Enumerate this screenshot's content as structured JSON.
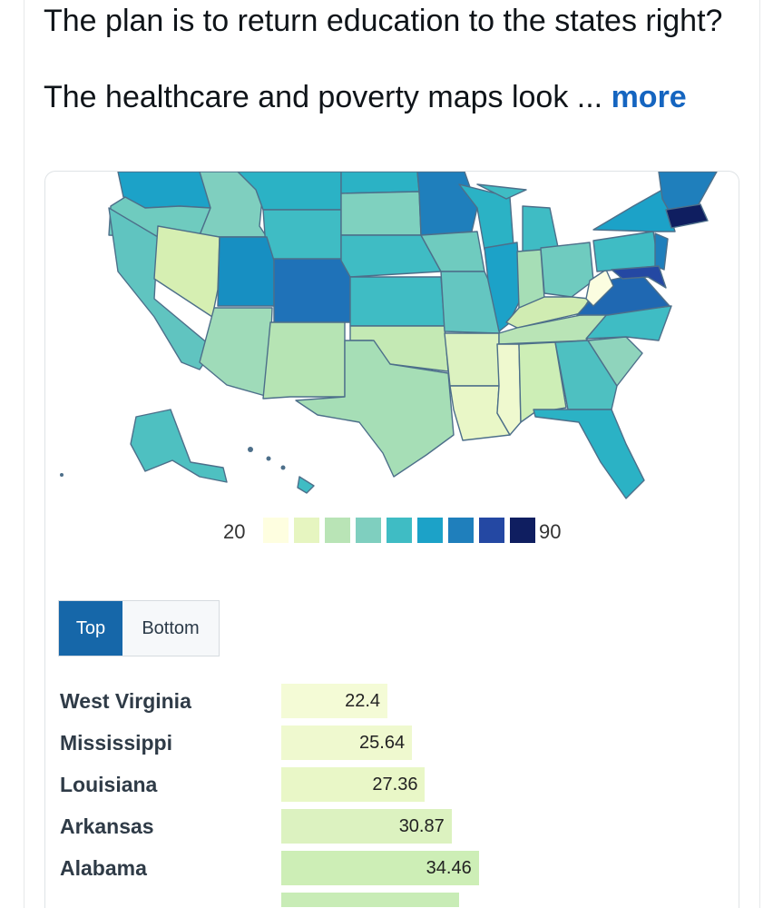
{
  "post": {
    "line1": "The plan is to return education to the states right?",
    "line2": "The healthcare and poverty maps look ...",
    "more_label": "more"
  },
  "legend": {
    "min": "20",
    "max": "90",
    "colors": [
      "#fefee0",
      "#e6f5c0",
      "#b9e4b6",
      "#7fcfbf",
      "#3fbcc4",
      "#1ca2c8",
      "#1f7fbc",
      "#2448a3",
      "#0f1e60"
    ]
  },
  "toggle": {
    "top_label": "Top",
    "bottom_label": "Bottom",
    "active": "Top"
  },
  "ranking": {
    "scale_min": 0,
    "scale_max": 90,
    "rows": [
      {
        "state": "West Virginia",
        "value": "22.4",
        "color": "#f4fbd6"
      },
      {
        "state": "Mississippi",
        "value": "25.64",
        "color": "#eff9cf"
      },
      {
        "state": "Louisiana",
        "value": "27.36",
        "color": "#e9f7c7"
      },
      {
        "state": "Arkansas",
        "value": "30.87",
        "color": "#dcf2c0"
      },
      {
        "state": "Alabama",
        "value": "34.46",
        "color": "#cdeeb6"
      }
    ],
    "partial_row": {
      "state": "",
      "value": "",
      "color": "#c8ecb6"
    }
  },
  "map": {
    "stroke": "#4d6f8a",
    "states": [
      {
        "id": "WA",
        "fill": "#1ca2c8"
      },
      {
        "id": "OR",
        "fill": "#6fcbbf"
      },
      {
        "id": "CA",
        "fill": "#60c4c0"
      },
      {
        "id": "ID",
        "fill": "#7fcfbf"
      },
      {
        "id": "NV",
        "fill": "#d6efb2"
      },
      {
        "id": "MT",
        "fill": "#2bb2c5"
      },
      {
        "id": "WY",
        "fill": "#3fbcc4"
      },
      {
        "id": "UT",
        "fill": "#178fc2"
      },
      {
        "id": "AZ",
        "fill": "#9fdbb9"
      },
      {
        "id": "CO",
        "fill": "#1f72b8"
      },
      {
        "id": "NM",
        "fill": "#b6e4b4"
      },
      {
        "id": "ND",
        "fill": "#2bb2c5"
      },
      {
        "id": "SD",
        "fill": "#7fd1bf"
      },
      {
        "id": "NE",
        "fill": "#3fbcc4"
      },
      {
        "id": "KS",
        "fill": "#3fbcc4"
      },
      {
        "id": "OK",
        "fill": "#c4e9b4"
      },
      {
        "id": "TX",
        "fill": "#a6deb6"
      },
      {
        "id": "MN",
        "fill": "#1f7fbc"
      },
      {
        "id": "IA",
        "fill": "#6fcbbf"
      },
      {
        "id": "MO",
        "fill": "#64c6c1"
      },
      {
        "id": "AR",
        "fill": "#dcf2c0"
      },
      {
        "id": "LA",
        "fill": "#e9f7c7"
      },
      {
        "id": "WI",
        "fill": "#2bb2c5"
      },
      {
        "id": "IL",
        "fill": "#1ca2c8"
      },
      {
        "id": "MI",
        "fill": "#3fbcc4"
      },
      {
        "id": "IN",
        "fill": "#a6deb6"
      },
      {
        "id": "OH",
        "fill": "#6fcbbf"
      },
      {
        "id": "KY",
        "fill": "#d0ecb2"
      },
      {
        "id": "TN",
        "fill": "#b9e4b6"
      },
      {
        "id": "MS",
        "fill": "#eff9cf"
      },
      {
        "id": "AL",
        "fill": "#cdeeb6"
      },
      {
        "id": "GA",
        "fill": "#4ec0c1"
      },
      {
        "id": "FL",
        "fill": "#2bb2c5"
      },
      {
        "id": "SC",
        "fill": "#8fd4bc"
      },
      {
        "id": "NC",
        "fill": "#3fbcc4"
      },
      {
        "id": "VA",
        "fill": "#1f68b2"
      },
      {
        "id": "WV",
        "fill": "#fbfde0"
      },
      {
        "id": "PA",
        "fill": "#3fbcc4"
      },
      {
        "id": "NY",
        "fill": "#1ca2c8"
      },
      {
        "id": "NJ",
        "fill": "#1f7fbc"
      },
      {
        "id": "MD",
        "fill": "#2448a3"
      },
      {
        "id": "NE-states",
        "fill": "#1f7fbc"
      },
      {
        "id": "MA",
        "fill": "#0f1e60"
      },
      {
        "id": "AK",
        "fill": "#4ec0c1"
      },
      {
        "id": "HI",
        "fill": "#3fbcc4"
      }
    ]
  }
}
